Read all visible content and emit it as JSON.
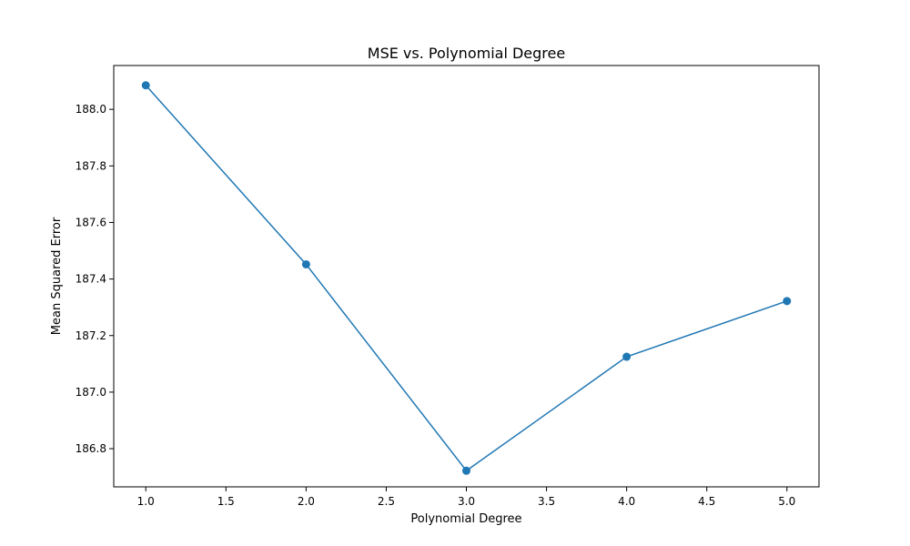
{
  "chart_data": {
    "type": "line",
    "title": "MSE vs. Polynomial Degree",
    "xlabel": "Polynomial Degree",
    "ylabel": "Mean Squared Error",
    "xlim": [
      0.8,
      5.2
    ],
    "ylim": [
      186.665,
      188.155
    ],
    "xticks": [
      1.0,
      1.5,
      2.0,
      2.5,
      3.0,
      3.5,
      4.0,
      4.5,
      5.0
    ],
    "xtick_labels": [
      "1.0",
      "1.5",
      "2.0",
      "2.5",
      "3.0",
      "3.5",
      "4.0",
      "4.5",
      "5.0"
    ],
    "yticks": [
      186.8,
      187.0,
      187.2,
      187.4,
      187.6,
      187.8,
      188.0
    ],
    "ytick_labels": [
      "186.8",
      "187.0",
      "187.2",
      "187.4",
      "187.6",
      "187.8",
      "188.0"
    ],
    "grid": false,
    "series": [
      {
        "x": [
          1,
          2,
          3,
          4,
          5
        ],
        "values": [
          188.085,
          187.452,
          186.722,
          187.125,
          187.322
        ],
        "color": "#1f77b4",
        "marker": "circle"
      }
    ]
  }
}
